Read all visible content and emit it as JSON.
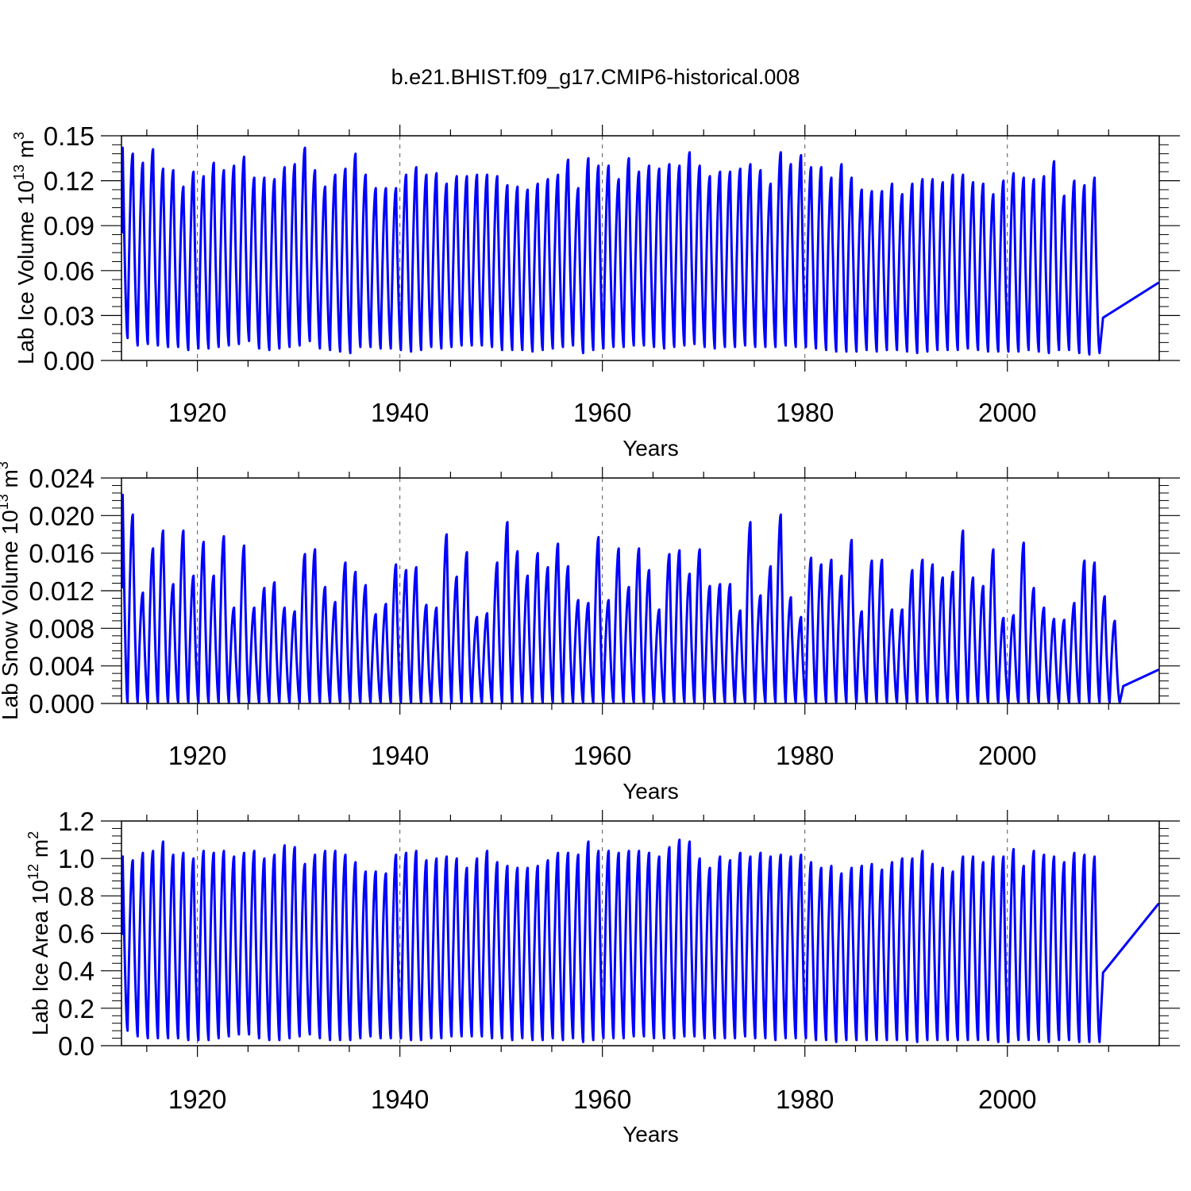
{
  "title": "b.e21.BHIST.f09_g17.CMIP6-historical.008",
  "chart_data": [
    {
      "type": "line",
      "title": "",
      "xlabel": "Years",
      "ylabel_base": "Lab Ice Volume 10",
      "ylabel_exp": "13",
      "ylabel_unit": " m",
      "ylabel_unit_exp": "3",
      "xlim": [
        1912.5,
        2015
      ],
      "ylim": [
        0,
        0.15
      ],
      "x_ticks": [
        1920,
        1940,
        1960,
        1980,
        2000
      ],
      "x_tick_labels": [
        "1920",
        "1940",
        "1960",
        "1980",
        "2000"
      ],
      "y_ticks": [
        0,
        0.03,
        0.06,
        0.09,
        0.12,
        0.15
      ],
      "y_tick_labels": [
        "0.00",
        "0.03",
        "0.06",
        "0.09",
        "0.12",
        "0.15"
      ],
      "grid": "dashed vertical at major x ticks",
      "line_color": "#0000ff",
      "series": [
        {
          "start_year": 1913,
          "annual_max": [
            0.142,
            0.138,
            0.132,
            0.141,
            0.128,
            0.127,
            0.116,
            0.126,
            0.123,
            0.132,
            0.127,
            0.13,
            0.136,
            0.122,
            0.122,
            0.121,
            0.129,
            0.131,
            0.142,
            0.127,
            0.116,
            0.124,
            0.128,
            0.138,
            0.124,
            0.115,
            0.115,
            0.115,
            0.124,
            0.129,
            0.124,
            0.125,
            0.118,
            0.123,
            0.123,
            0.124,
            0.124,
            0.123,
            0.117,
            0.116,
            0.114,
            0.118,
            0.121,
            0.124,
            0.134,
            0.115,
            0.135,
            0.13,
            0.13,
            0.121,
            0.135,
            0.126,
            0.13,
            0.128,
            0.131,
            0.13,
            0.139,
            0.13,
            0.123,
            0.126,
            0.126,
            0.128,
            0.131,
            0.127,
            0.118,
            0.139,
            0.131,
            0.137,
            0.129,
            0.129,
            0.122,
            0.131,
            0.122,
            0.114,
            0.113,
            0.113,
            0.118,
            0.111,
            0.118,
            0.121,
            0.121,
            0.119,
            0.124,
            0.124,
            0.119,
            0.118,
            0.111,
            0.12,
            0.125,
            0.122,
            0.121,
            0.123,
            0.133,
            0.11,
            0.12,
            0.117,
            0.122
          ],
          "annual_min": [
            0.015,
            0.01,
            0.011,
            0.01,
            0.009,
            0.009,
            0.007,
            0.008,
            0.008,
            0.009,
            0.01,
            0.011,
            0.013,
            0.008,
            0.007,
            0.008,
            0.009,
            0.01,
            0.013,
            0.008,
            0.007,
            0.006,
            0.005,
            0.009,
            0.009,
            0.008,
            0.008,
            0.007,
            0.006,
            0.007,
            0.009,
            0.008,
            0.009,
            0.01,
            0.01,
            0.01,
            0.009,
            0.007,
            0.007,
            0.007,
            0.006,
            0.007,
            0.008,
            0.009,
            0.01,
            0.005,
            0.007,
            0.008,
            0.009,
            0.009,
            0.01,
            0.01,
            0.009,
            0.008,
            0.009,
            0.01,
            0.011,
            0.009,
            0.008,
            0.009,
            0.009,
            0.01,
            0.009,
            0.009,
            0.009,
            0.01,
            0.009,
            0.009,
            0.008,
            0.007,
            0.006,
            0.006,
            0.006,
            0.007,
            0.006,
            0.007,
            0.007,
            0.006,
            0.005,
            0.006,
            0.007,
            0.007,
            0.007,
            0.008,
            0.007,
            0.006,
            0.006,
            0.006,
            0.006,
            0.007,
            0.006,
            0.005,
            0.007,
            0.007,
            0.005,
            0.004,
            0.005
          ],
          "end_value": 0.052
        }
      ]
    },
    {
      "type": "line",
      "title": "",
      "xlabel": "Years",
      "ylabel_base": "Lab Snow Volume 10",
      "ylabel_exp": "13",
      "ylabel_unit": " m",
      "ylabel_unit_exp": "3",
      "xlim": [
        1912.5,
        2015
      ],
      "ylim": [
        0,
        0.024
      ],
      "x_ticks": [
        1920,
        1940,
        1960,
        1980,
        2000
      ],
      "x_tick_labels": [
        "1920",
        "1940",
        "1960",
        "1980",
        "2000"
      ],
      "y_ticks": [
        0,
        0.004,
        0.008,
        0.012,
        0.016,
        0.02,
        0.024
      ],
      "y_tick_labels": [
        "0.000",
        "0.004",
        "0.008",
        "0.012",
        "0.016",
        "0.020",
        "0.024"
      ],
      "grid": "dashed vertical at major x ticks",
      "line_color": "#0000ff",
      "series": [
        {
          "start_year": 1913,
          "annual_max": [
            0.0222,
            0.0201,
            0.0118,
            0.0165,
            0.0184,
            0.0127,
            0.0184,
            0.0136,
            0.0172,
            0.0136,
            0.0178,
            0.0102,
            0.0168,
            0.0102,
            0.0123,
            0.0129,
            0.0102,
            0.0098,
            0.0159,
            0.0164,
            0.0124,
            0.0108,
            0.015,
            0.014,
            0.0126,
            0.0095,
            0.0106,
            0.0148,
            0.0142,
            0.0145,
            0.0105,
            0.0102,
            0.018,
            0.0135,
            0.0161,
            0.0092,
            0.0096,
            0.015,
            0.0193,
            0.0162,
            0.0136,
            0.016,
            0.0145,
            0.017,
            0.0146,
            0.011,
            0.0107,
            0.0177,
            0.011,
            0.0165,
            0.0124,
            0.0165,
            0.0142,
            0.01,
            0.0159,
            0.0163,
            0.0138,
            0.0164,
            0.0125,
            0.0127,
            0.0127,
            0.0099,
            0.0193,
            0.0115,
            0.0146,
            0.0201,
            0.0113,
            0.0092,
            0.0155,
            0.0148,
            0.0153,
            0.0136,
            0.0174,
            0.0098,
            0.0152,
            0.0153,
            0.01,
            0.01,
            0.0142,
            0.0153,
            0.0148,
            0.0134,
            0.014,
            0.0184,
            0.0134,
            0.0125,
            0.0164,
            0.0091,
            0.0094,
            0.0171,
            0.0123,
            0.0102,
            0.009,
            0.0089,
            0.0107,
            0.0152,
            0.015,
            0.0114,
            0.0088
          ],
          "annual_min": [
            0.0001,
            0.0001,
            0.0001,
            0.0001,
            0.0001,
            0.0001,
            0.0001,
            0.0001,
            0.0001,
            0.0001,
            0.0001,
            0.0001,
            0.0001,
            0.0001,
            0.0001,
            0.0001,
            0.0001,
            0.0001,
            0.0001,
            0.0001,
            0.0001,
            0.0001,
            0.0001,
            0.0001,
            0.0001,
            0.0001,
            0.0001,
            0.0001,
            0.0001,
            0.0001,
            0.0001,
            0.0001,
            0.0001,
            0.0001,
            0.0001,
            0.0001,
            0.0001,
            0.0001,
            0.0001,
            0.0001,
            0.0001,
            0.0001,
            0.0001,
            0.0001,
            0.0001,
            0.0001,
            0.0001,
            0.0001,
            0.0001,
            0.0001,
            0.0001,
            0.0001,
            0.0001,
            0.0001,
            0.0001,
            0.0001,
            0.0001,
            0.0001,
            0.0001,
            0.0001,
            0.0001,
            0.0001,
            0.0001,
            0.0001,
            0.0001,
            0.0001,
            0.0001,
            0.0001,
            0.0001,
            0.0001,
            0.0001,
            0.0001,
            0.0001,
            0.0001,
            0.0001,
            0.0001,
            0.0001,
            0.0001,
            0.0001,
            0.0001,
            0.0001,
            0.0001,
            0.0001,
            0.0001,
            0.0001,
            0.0001,
            0.0001,
            0.0001,
            0.0001,
            0.0001,
            0.0001,
            0.0001,
            0.0001,
            0.0001,
            0.0001,
            0.0001,
            0.0001,
            0.0001,
            0.0001
          ],
          "end_value": 0.0036
        }
      ]
    },
    {
      "type": "line",
      "title": "",
      "xlabel": "Years",
      "ylabel_base": "Lab Ice Area 10",
      "ylabel_exp": "12",
      "ylabel_unit": " m",
      "ylabel_unit_exp": "2",
      "xlim": [
        1912.5,
        2015
      ],
      "ylim": [
        0,
        1.2
      ],
      "x_ticks": [
        1920,
        1940,
        1960,
        1980,
        2000
      ],
      "x_tick_labels": [
        "1920",
        "1940",
        "1960",
        "1980",
        "2000"
      ],
      "y_ticks": [
        0,
        0.2,
        0.4,
        0.6,
        0.8,
        1.0,
        1.2
      ],
      "y_tick_labels": [
        "0.0",
        "0.2",
        "0.4",
        "0.6",
        "0.8",
        "1.0",
        "1.2"
      ],
      "grid": "dashed vertical at major x ticks",
      "line_color": "#0000ff",
      "series": [
        {
          "start_year": 1913,
          "annual_max": [
            1.01,
            0.99,
            1.03,
            1.04,
            1.09,
            1.02,
            1.03,
            1.0,
            1.04,
            1.03,
            1.04,
            1.01,
            1.03,
            1.04,
            1.0,
            1.02,
            1.07,
            1.06,
            0.97,
            1.02,
            1.04,
            1.04,
            1.02,
            0.98,
            0.93,
            0.93,
            0.92,
            1.02,
            1.03,
            1.04,
            0.99,
            1.0,
            1.01,
            1.0,
            0.95,
            1.0,
            1.04,
            0.98,
            0.96,
            0.95,
            0.95,
            0.96,
            0.99,
            1.03,
            1.03,
            1.02,
            1.09,
            1.04,
            1.04,
            1.03,
            1.04,
            1.04,
            1.03,
            1.01,
            1.06,
            1.1,
            1.09,
            1.0,
            0.95,
            1.01,
            0.99,
            1.03,
            1.01,
            1.03,
            1.01,
            1.02,
            1.01,
            1.02,
            0.98,
            0.95,
            0.96,
            0.92,
            0.95,
            0.96,
            0.97,
            0.94,
            0.98,
            1.0,
            1.0,
            1.04,
            0.97,
            0.95,
            0.93,
            1.01,
            1.01,
            0.98,
            1.01,
            1.01,
            1.05,
            0.96,
            1.04,
            1.02,
            1.01,
            0.98,
            1.03,
            1.02,
            1.01
          ],
          "annual_min": [
            0.08,
            0.05,
            0.04,
            0.04,
            0.04,
            0.04,
            0.03,
            0.03,
            0.03,
            0.04,
            0.05,
            0.06,
            0.06,
            0.04,
            0.03,
            0.03,
            0.04,
            0.05,
            0.06,
            0.04,
            0.03,
            0.03,
            0.03,
            0.04,
            0.05,
            0.04,
            0.04,
            0.04,
            0.03,
            0.03,
            0.04,
            0.04,
            0.05,
            0.05,
            0.05,
            0.05,
            0.04,
            0.04,
            0.03,
            0.04,
            0.03,
            0.03,
            0.04,
            0.03,
            0.04,
            0.02,
            0.03,
            0.04,
            0.04,
            0.04,
            0.05,
            0.05,
            0.04,
            0.04,
            0.04,
            0.05,
            0.05,
            0.04,
            0.04,
            0.04,
            0.04,
            0.05,
            0.04,
            0.04,
            0.03,
            0.04,
            0.04,
            0.04,
            0.03,
            0.03,
            0.02,
            0.03,
            0.03,
            0.03,
            0.03,
            0.03,
            0.03,
            0.03,
            0.02,
            0.03,
            0.03,
            0.03,
            0.03,
            0.03,
            0.03,
            0.03,
            0.02,
            0.02,
            0.03,
            0.03,
            0.03,
            0.02,
            0.03,
            0.03,
            0.02,
            0.02,
            0.02
          ],
          "end_value": 0.76
        }
      ]
    }
  ]
}
